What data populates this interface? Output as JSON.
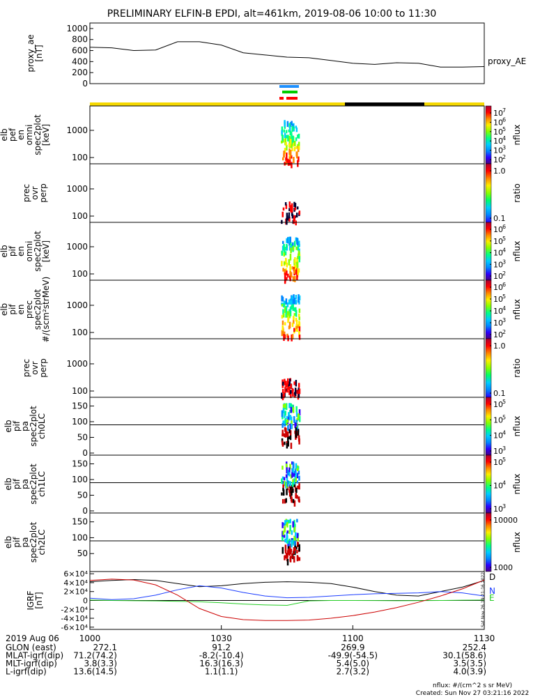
{
  "title": "PRELIMINARY ELFIN-B EPDI, alt=461km, 2019-08-06 10:00 to 11:30",
  "footer": {
    "units": "nflux: #/(cm^2 s sr MeV)",
    "created": "Created: Sun Nov 27 03:21:16 2022",
    "side_stamp": "Sat Nov 26 19:21:16 2022"
  },
  "time_axis": {
    "date": "2019 Aug 06",
    "ticks": [
      "1000",
      "1030",
      "1100",
      "1130"
    ],
    "rows": [
      {
        "label": "GLON (east)",
        "values": [
          "272.1",
          "91.2",
          "269.9",
          "252.4"
        ]
      },
      {
        "label": "MLAT-igrf(dip)",
        "values": [
          "71.2(74.2)",
          "-8.2(-10.4)",
          "-49.9(-54.5)",
          "30.1(58.6)"
        ]
      },
      {
        "label": "MLT-igrf(dip)",
        "values": [
          "3.8(3.3)",
          "16.3(16.3)",
          "5.4(5.0)",
          "3.5(3.5)"
        ]
      },
      {
        "label": "L-igrf(dip)",
        "values": [
          "13.6(14.5)",
          "1.1(1.1)",
          "2.7(3.2)",
          "4.0(3.9)"
        ]
      }
    ]
  },
  "status_bar": {
    "colors": {
      "science": "#f5d800",
      "eclipse": "#000000",
      "fgm": "#1e90ff",
      "epde": "#00cc00",
      "epdi": "#ff0000"
    }
  },
  "colorbars": [
    {
      "label": "nflux",
      "ticks": [
        "10^7",
        "10^6",
        "10^5",
        "10^4",
        "10^3",
        "10^2"
      ]
    },
    {
      "label": "ratio",
      "ticks": [
        "1.0",
        "0.1"
      ]
    },
    {
      "label": "nflux",
      "ticks": [
        "10^6",
        "10^5",
        "10^4",
        "10^3",
        "10^2"
      ]
    },
    {
      "label": "nflux",
      "ticks": [
        "10^6",
        "10^5",
        "10^4",
        "10^3",
        "10^2"
      ]
    },
    {
      "label": "ratio",
      "ticks": [
        "1.0",
        "0.1"
      ]
    },
    {
      "label": "nflux",
      "ticks": [
        "10^5",
        "10^5",
        "10^4",
        "10^3"
      ]
    },
    {
      "label": "nflux",
      "ticks": [
        "10^5",
        "10^4",
        "10^3"
      ]
    },
    {
      "label": "nflux",
      "ticks": [
        "10000",
        "1000"
      ]
    }
  ],
  "chart_data": [
    {
      "id": "proxy_ae",
      "type": "line",
      "ylabel": [
        "proxy_ae",
        "[nT]"
      ],
      "yticks": [
        "0",
        "200",
        "400",
        "600",
        "800",
        "1000"
      ],
      "ylim": [
        0,
        1100
      ],
      "legend": "proxy_AE",
      "x": [
        1000,
        1005,
        1010,
        1015,
        1020,
        1025,
        1030,
        1035,
        1040,
        1045,
        1050,
        1055,
        1100,
        1105,
        1110,
        1115,
        1120,
        1125,
        1130
      ],
      "values": [
        660,
        650,
        600,
        610,
        760,
        760,
        700,
        560,
        520,
        480,
        470,
        420,
        370,
        350,
        380,
        370,
        300,
        300,
        310
      ]
    },
    {
      "id": "perp_spec",
      "type": "heatmap",
      "ylabel": [
        "elb",
        "pef",
        "en",
        "omni",
        "spec2plot",
        "[keV]"
      ],
      "yticks": [
        "100",
        "1000"
      ],
      "note": "energy spectrogram, log scale"
    },
    {
      "id": "prec_ovr_perp_1",
      "type": "heatmap",
      "ylabel": [
        "prec",
        "ovr",
        "perp"
      ],
      "yticks": [
        "100",
        "1000"
      ]
    },
    {
      "id": "pif_en_omni",
      "type": "heatmap",
      "ylabel": [
        "elb",
        "pif",
        "en",
        "omni",
        "spec2plot",
        "[keV]"
      ],
      "yticks": [
        "100",
        "1000"
      ]
    },
    {
      "id": "pif_en_prec",
      "type": "heatmap",
      "ylabel": [
        "elb",
        "pif",
        "en",
        "prec",
        "spec2plot",
        "#/(scm²strMeV)"
      ],
      "yticks": [
        "100",
        "1000"
      ]
    },
    {
      "id": "prec_ovr_perp_2",
      "type": "heatmap",
      "ylabel": [
        "prec",
        "ovr",
        "perp"
      ],
      "yticks": [
        "100",
        "1000"
      ]
    },
    {
      "id": "pa_ch0",
      "type": "heatmap",
      "ylabel": [
        "elb",
        "pif",
        "pa",
        "spec2plot",
        "ch0LC"
      ],
      "yticks": [
        "0",
        "50",
        "100",
        "150"
      ]
    },
    {
      "id": "pa_ch1",
      "type": "heatmap",
      "ylabel": [
        "elb",
        "pif",
        "pa",
        "spec2plot",
        "ch1LC"
      ],
      "yticks": [
        "0",
        "50",
        "100",
        "150"
      ]
    },
    {
      "id": "pa_ch2",
      "type": "heatmap",
      "ylabel": [
        "elb",
        "pif",
        "pa",
        "spec2plot",
        "ch2LC"
      ],
      "yticks": [
        "50",
        "100",
        "150"
      ]
    },
    {
      "id": "igrf",
      "type": "line",
      "ylabel": [
        "IGRF",
        "[nT]"
      ],
      "yticks": [
        "-6×10⁴",
        "-4×10⁴",
        "-2×10⁴",
        "0",
        "2×10⁴",
        "4×10⁴",
        "6×10⁴"
      ],
      "ylim": [
        -65000,
        65000
      ],
      "x": [
        1000,
        1005,
        1010,
        1015,
        1020,
        1025,
        1030,
        1035,
        1040,
        1045,
        1050,
        1055,
        1100,
        1105,
        1110,
        1115,
        1120,
        1125,
        1130
      ],
      "series": [
        {
          "name": "D",
          "color": "#000000",
          "values": [
            42000,
            45000,
            47000,
            45000,
            38000,
            31000,
            33000,
            38000,
            41000,
            42000,
            41000,
            38000,
            30000,
            20000,
            12000,
            10000,
            20000,
            30000,
            45000
          ]
        },
        {
          "name": "N",
          "color": "#1a3cff",
          "values": [
            5000,
            2000,
            4000,
            12000,
            24000,
            33000,
            28000,
            18000,
            10000,
            6000,
            7000,
            10000,
            13000,
            15000,
            16000,
            17000,
            20000,
            17000,
            10000
          ]
        },
        {
          "name": "E",
          "color": "#22cc22",
          "values": [
            1000,
            0,
            -500,
            -1000,
            -2000,
            -3000,
            -5000,
            -8000,
            -10000,
            -11000,
            -1000,
            0,
            0,
            -200,
            -500,
            -300,
            0,
            500,
            1000
          ]
        },
        {
          "name": "",
          "color": "#cc0000",
          "values": [
            45000,
            48000,
            46000,
            35000,
            12000,
            -18000,
            -36000,
            -43000,
            -45000,
            -45000,
            -44000,
            -40000,
            -34000,
            -26000,
            -16000,
            -4000,
            10000,
            26000,
            46000
          ]
        }
      ]
    }
  ]
}
